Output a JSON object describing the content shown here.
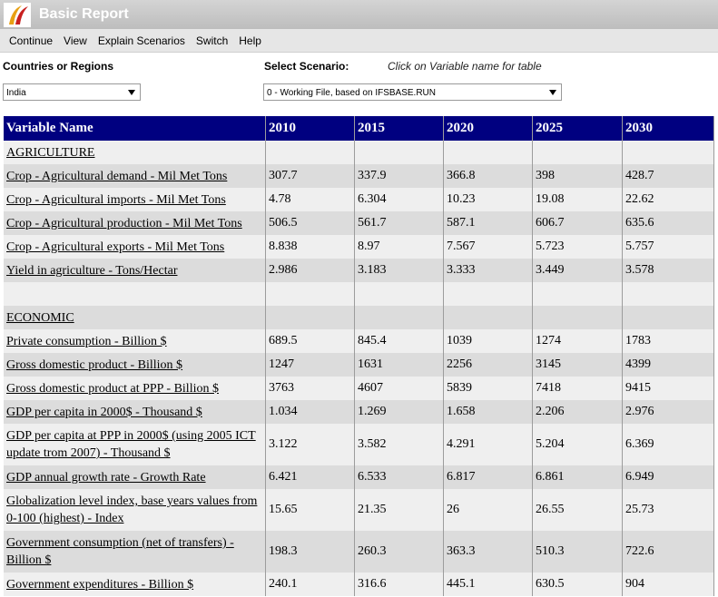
{
  "window": {
    "title": "Basic Report"
  },
  "menu": [
    "Continue",
    "View",
    "Explain Scenarios",
    "Switch",
    "Help"
  ],
  "controls": {
    "region_label": "Countries or Regions",
    "region_value": "India",
    "scenario_label": "Select Scenario:",
    "hint": "Click on Variable name for table",
    "scenario_value": "0 - Working File, based on IFSBASE.RUN"
  },
  "table": {
    "header": [
      "Variable Name",
      2010,
      2015,
      2020,
      2025,
      2030
    ],
    "sections": [
      {
        "title": "AGRICULTURE",
        "rows": [
          {
            "name": "Crop - Agricultural demand - Mil Met Tons",
            "values": [
              307.7,
              337.9,
              366.8,
              398,
              428.7
            ]
          },
          {
            "name": "Crop - Agricultural imports - Mil Met Tons",
            "values": [
              4.78,
              6.304,
              10.23,
              19.08,
              22.62
            ]
          },
          {
            "name": "Crop - Agricultural production - Mil Met Tons",
            "values": [
              506.5,
              561.7,
              587.1,
              606.7,
              635.6
            ]
          },
          {
            "name": "Crop - Agricultural exports - Mil Met Tons",
            "values": [
              8.838,
              8.97,
              7.567,
              5.723,
              5.757
            ]
          },
          {
            "name": "Yield in agriculture - Tons/Hectar",
            "values": [
              2.986,
              3.183,
              3.333,
              3.449,
              3.578
            ]
          }
        ]
      },
      {
        "title": "ECONOMIC",
        "rows": [
          {
            "name": "Private consumption - Billion $",
            "values": [
              689.5,
              845.4,
              1039,
              1274,
              1783
            ]
          },
          {
            "name": "Gross domestic product - Billion $",
            "values": [
              1247,
              1631,
              2256,
              3145,
              4399
            ]
          },
          {
            "name": "Gross domestic product at PPP - Billion $",
            "values": [
              3763,
              4607,
              5839,
              7418,
              9415
            ]
          },
          {
            "name": "GDP per capita in 2000$ - Thousand $",
            "values": [
              1.034,
              1.269,
              1.658,
              2.206,
              2.976
            ]
          },
          {
            "name": "GDP per capita at PPP in 2000$ (using 2005 ICT update trom 2007) - Thousand $",
            "values": [
              3.122,
              3.582,
              4.291,
              5.204,
              6.369
            ]
          },
          {
            "name": "GDP annual growth rate - Growth Rate",
            "values": [
              6.421,
              6.533,
              6.817,
              6.861,
              6.949
            ]
          },
          {
            "name": "Globalization level index, base years values from 0-100 (highest) - Index",
            "values": [
              15.65,
              21.35,
              26,
              26.55,
              25.73
            ]
          },
          {
            "name": "Government consumption (net of transfers) - Billion $",
            "values": [
              198.3,
              260.3,
              363.3,
              510.3,
              722.6
            ]
          },
          {
            "name": "Government expenditures - Billion $",
            "values": [
              240.1,
              316.6,
              445.1,
              630.5,
              904
            ]
          }
        ]
      }
    ]
  }
}
